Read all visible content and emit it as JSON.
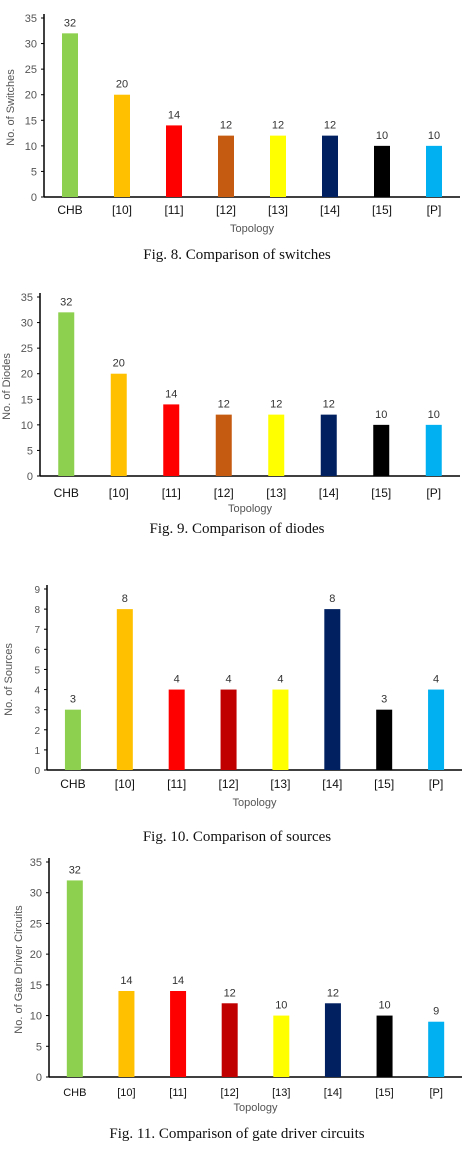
{
  "chart_data": [
    {
      "type": "bar",
      "categories": [
        "CHB",
        "[10]",
        "[11]",
        "[12]",
        "[13]",
        "[14]",
        "[15]",
        "[P]"
      ],
      "values": [
        32,
        20,
        14,
        12,
        12,
        12,
        10,
        10
      ],
      "colors": [
        "#8dcf4e",
        "#ffc000",
        "#ff0000",
        "#c55a11",
        "#ffff00",
        "#002060",
        "#000000",
        "#00b0f0"
      ],
      "ylabel": "No. of Switches",
      "xlabel": "Topology",
      "ylim": [
        0,
        35
      ],
      "yticks": [
        "0",
        "5",
        "10",
        "15",
        "20",
        "25",
        "30",
        "35"
      ],
      "data_labels": [
        "32",
        "20",
        "14",
        "12",
        "12",
        "12",
        "10",
        "10"
      ],
      "caption": "Fig. 8. Comparison of switches"
    },
    {
      "type": "bar",
      "categories": [
        "CHB",
        "[10]",
        "[11]",
        "[12]",
        "[13]",
        "[14]",
        "[15]",
        "[P]"
      ],
      "values": [
        32,
        20,
        14,
        12,
        12,
        12,
        10,
        10
      ],
      "colors": [
        "#8dcf4e",
        "#ffc000",
        "#ff0000",
        "#c55a11",
        "#ffff00",
        "#002060",
        "#000000",
        "#00b0f0"
      ],
      "ylabel": "No. of Diodes",
      "xlabel": "Topology",
      "ylim": [
        0,
        35
      ],
      "yticks": [
        "0",
        "5",
        "10",
        "15",
        "20",
        "25",
        "30",
        "35"
      ],
      "data_labels": [
        "32",
        "20",
        "14",
        "12",
        "12",
        "12",
        "10",
        "10"
      ],
      "caption": "Fig. 9. Comparison of diodes"
    },
    {
      "type": "bar",
      "categories": [
        "CHB",
        "[10]",
        "[11]",
        "[12]",
        "[13]",
        "[14]",
        "[15]",
        "[P]"
      ],
      "values": [
        3,
        8,
        4,
        4,
        4,
        8,
        3,
        4
      ],
      "colors": [
        "#8dcf4e",
        "#ffc000",
        "#ff0000",
        "#c00000",
        "#ffff00",
        "#002060",
        "#000000",
        "#00b0f0"
      ],
      "ylabel": "No. of Sources",
      "xlabel": "Topology",
      "ylim": [
        0,
        9
      ],
      "yticks": [
        "0",
        "1",
        "2",
        "3",
        "4",
        "5",
        "6",
        "7",
        "8",
        "9"
      ],
      "data_labels": [
        "3",
        "8",
        "4",
        "4",
        "4",
        "8",
        "3",
        "4"
      ],
      "caption": "Fig. 10. Comparison of sources"
    },
    {
      "type": "bar",
      "categories": [
        "CHB",
        "[10]",
        "[11]",
        "[12]",
        "[13]",
        "[14]",
        "[15]",
        "[P]"
      ],
      "values": [
        32,
        14,
        14,
        12,
        10,
        12,
        10,
        9
      ],
      "colors": [
        "#8dcf4e",
        "#ffc000",
        "#ff0000",
        "#c00000",
        "#ffff00",
        "#002060",
        "#000000",
        "#00b0f0"
      ],
      "ylabel": "No. of Gate Driver Circuits",
      "xlabel": "Topology",
      "ylim": [
        0,
        35
      ],
      "yticks": [
        "0",
        "5",
        "10",
        "15",
        "20",
        "25",
        "30",
        "35"
      ],
      "data_labels": [
        "32",
        "14",
        "14",
        "12",
        "10",
        "12",
        "10",
        "9"
      ],
      "caption": "Fig. 11. Comparison of gate driver circuits"
    }
  ]
}
